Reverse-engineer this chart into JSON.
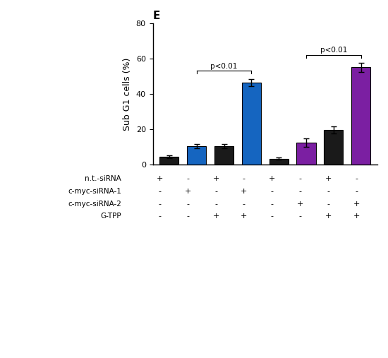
{
  "title": "E",
  "ylabel": "Sub G1 cells (%)",
  "ylim": [
    0,
    80
  ],
  "yticks": [
    0,
    20,
    40,
    60,
    80
  ],
  "bar_values": [
    4.5,
    10.5,
    10.5,
    46.5,
    3.5,
    12.5,
    19.5,
    55.0
  ],
  "bar_errors": [
    0.8,
    1.2,
    1.2,
    2.0,
    0.5,
    2.5,
    2.0,
    2.5
  ],
  "bar_colors": [
    "#1a1a1a",
    "#1565c0",
    "#1a1a1a",
    "#1565c0",
    "#1a1a1a",
    "#7b1fa2",
    "#1a1a1a",
    "#7b1fa2"
  ],
  "label_rows": {
    "n.t.-siRNA": [
      "+",
      "-",
      "+",
      "-",
      "+",
      "-",
      "+",
      "-"
    ],
    "c-myc-siRNA-1": [
      "-",
      "+",
      "-",
      "+",
      "-",
      "-",
      "-",
      "-"
    ],
    "c-myc-siRNA-2": [
      "-",
      "-",
      "-",
      "-",
      "-",
      "+",
      "-",
      "+"
    ],
    "G-TPP": [
      "-",
      "-",
      "+",
      "+",
      "-",
      "-",
      "+",
      "+"
    ]
  },
  "significance": [
    {
      "bar1": 1,
      "bar2": 3,
      "label": "p<0.01"
    },
    {
      "bar1": 5,
      "bar2": 7,
      "label": "p<0.01"
    }
  ],
  "background_color": "#ffffff"
}
